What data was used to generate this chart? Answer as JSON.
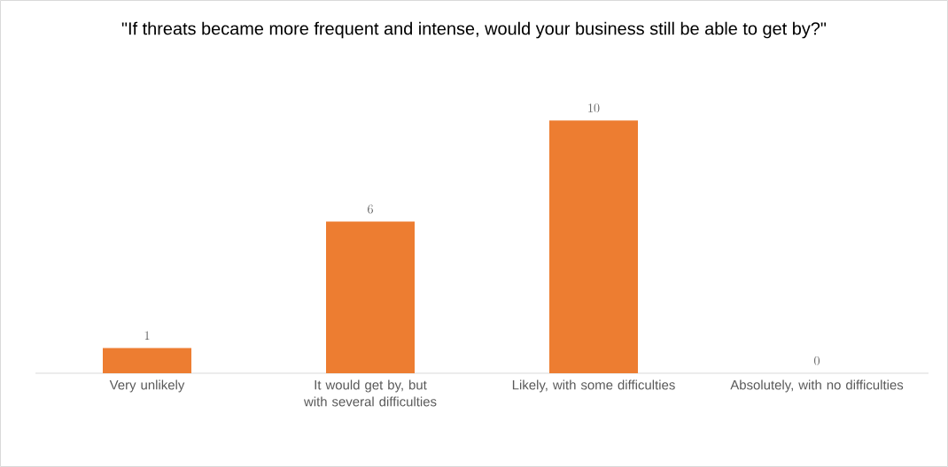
{
  "chart_data": {
    "type": "bar",
    "title": "\"If threats became more frequent and intense, would your business still be able to get by?\"",
    "categories": [
      "Very unlikely",
      "It would get by, but with several difficulties",
      "Likely, with some difficulties",
      "Absolutely, with no difficulties"
    ],
    "values": [
      1,
      6,
      10,
      0
    ],
    "color": "#ed7d31",
    "data_labels": true
  }
}
